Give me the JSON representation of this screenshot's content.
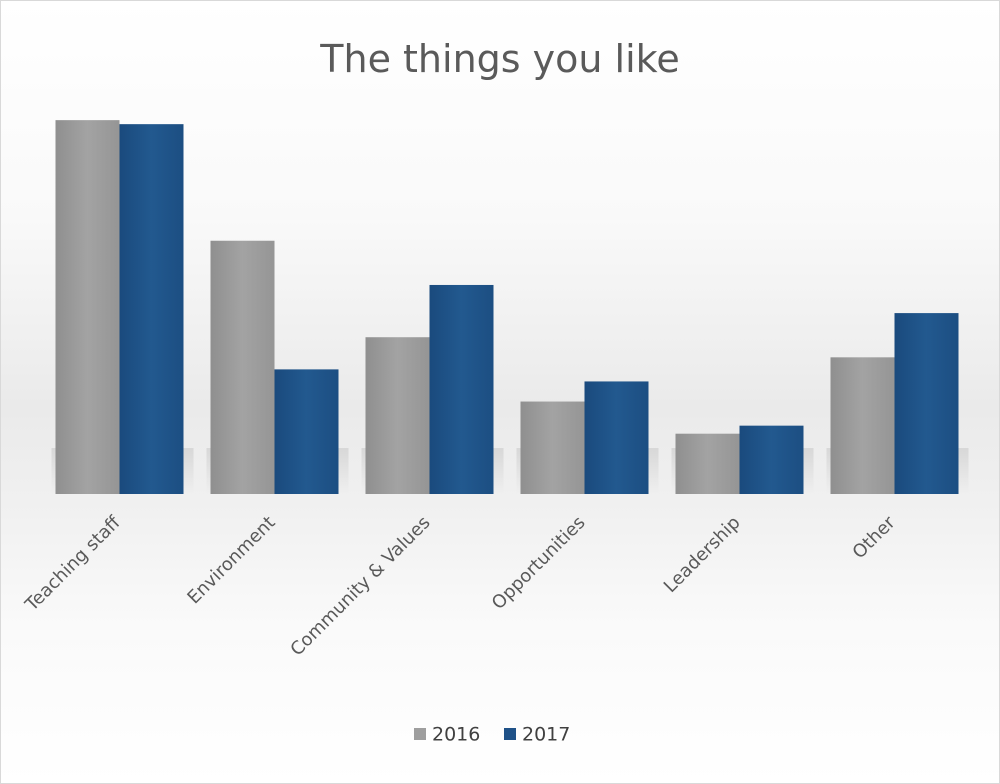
{
  "chart_data": {
    "type": "bar",
    "title": "The things you like",
    "xlabel": "",
    "ylabel": "",
    "ylim": [
      0,
      100
    ],
    "grid": false,
    "legend_position": "bottom",
    "categories": [
      "Teaching staff",
      "Environment",
      "Community & Values",
      "Opportunities",
      "Leadership",
      "Other"
    ],
    "series": [
      {
        "name": "2016",
        "color": "#9e9e9e",
        "values": [
          93,
          63,
          39,
          23,
          15,
          34
        ]
      },
      {
        "name": "2017",
        "color": "#1f5288",
        "values": [
          92,
          31,
          52,
          28,
          17,
          45
        ]
      }
    ]
  }
}
